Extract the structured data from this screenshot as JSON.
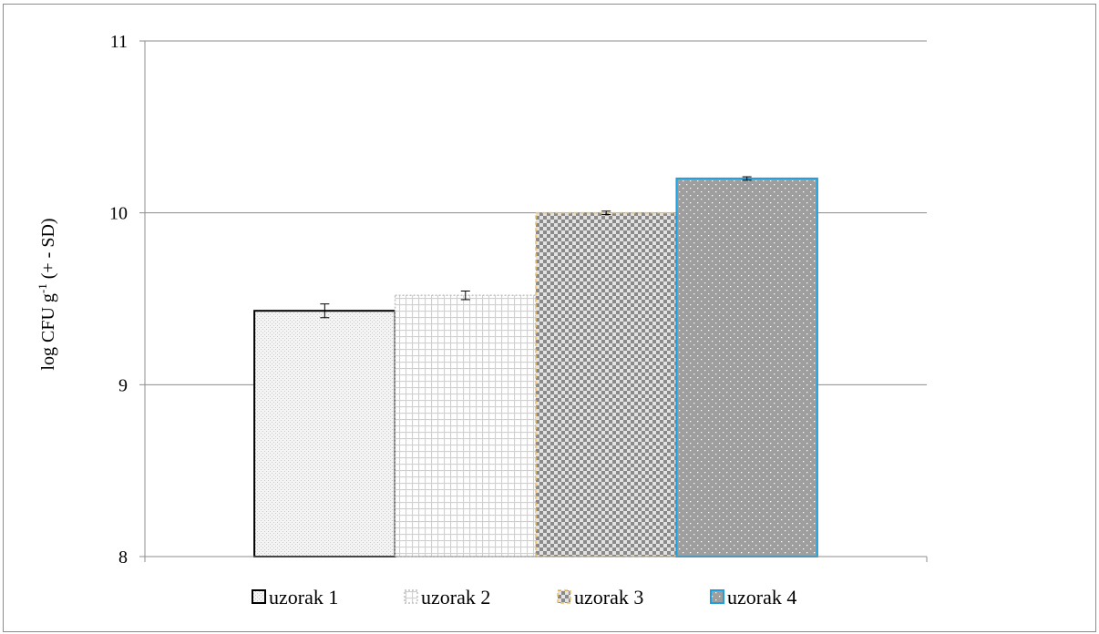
{
  "chart_data": {
    "type": "bar",
    "title": "",
    "xlabel": "",
    "ylabel": {
      "main": "log CFU  g",
      "sup": "-1",
      "rest": " (+ - SD)"
    },
    "ylim": [
      8,
      11
    ],
    "yticks": [
      "8",
      "9",
      "10",
      "11"
    ],
    "grid": true,
    "legend_position": "bottom",
    "series": [
      {
        "name": "uzorak 1",
        "value": 9.43,
        "error": 0.04,
        "fill": "#f2f2f2",
        "pattern": "fine-dots",
        "stroke": "#000000",
        "stroke_style": "solid"
      },
      {
        "name": "uzorak 2",
        "value": 9.52,
        "error": 0.025,
        "fill": "#ffffff",
        "pattern": "grid",
        "stroke": "#bfbfbf",
        "stroke_style": "dotted"
      },
      {
        "name": "uzorak 3",
        "value": 10.0,
        "error": 0.01,
        "fill": "#bdbdbd",
        "pattern": "checker",
        "stroke": "#f0c060",
        "stroke_style": "dashed"
      },
      {
        "name": "uzorak 4",
        "value": 10.2,
        "error": 0.01,
        "fill": "#a0a0a0",
        "pattern": "white-dots",
        "stroke": "#1ea0dc",
        "stroke_style": "solid"
      }
    ]
  }
}
